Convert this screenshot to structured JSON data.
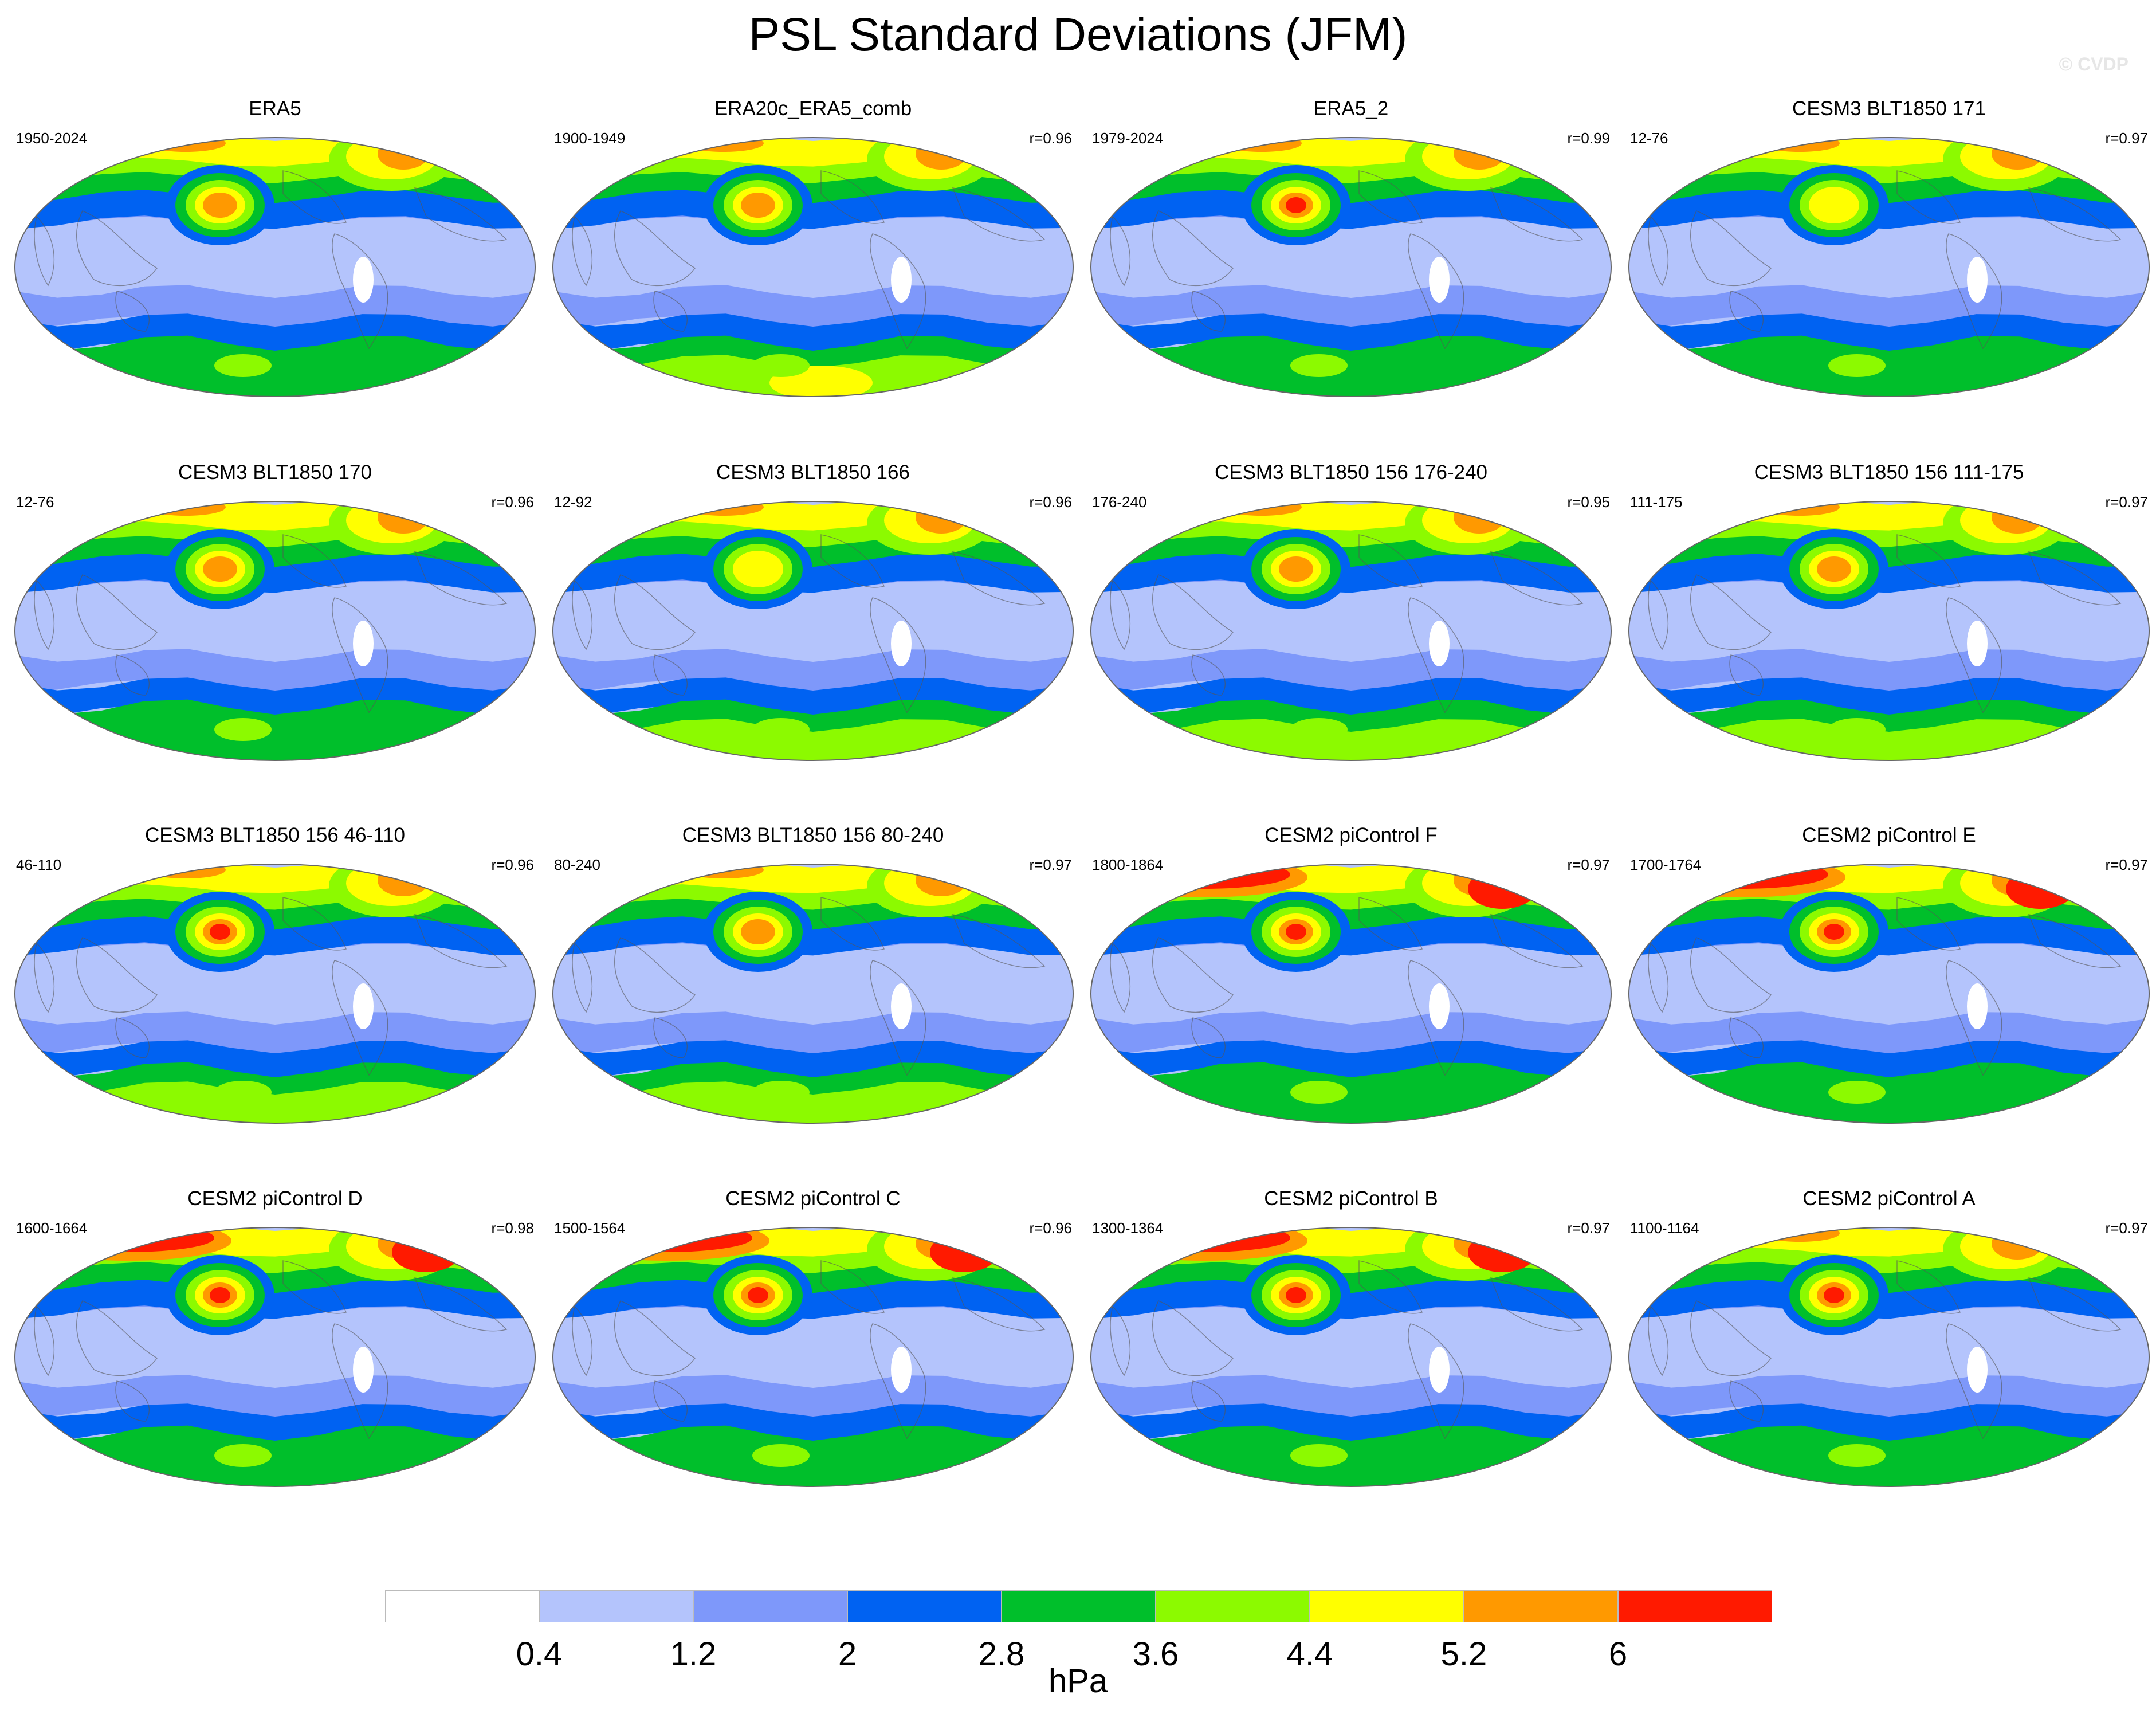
{
  "title": "PSL Standard Deviations (JFM)",
  "credit": "© CVDP",
  "units": "hPa",
  "levels": [
    "0.4",
    "1.2",
    "2",
    "2.8",
    "3.6",
    "4.4",
    "5.2",
    "6"
  ],
  "colors": [
    "#ffffff",
    "#b4c4fc",
    "#7e98fa",
    "#0062f2",
    "#00bf2b",
    "#8cfa00",
    "#ffff00",
    "#ff9900",
    "#ff1a00"
  ],
  "panels": [
    {
      "title": "ERA5",
      "years": "1950-2024",
      "r": "",
      "nh": 0.55,
      "ak": 0.78,
      "sh": 0.55
    },
    {
      "title": "ERA20c_ERA5_comb",
      "years": "1900-1949",
      "r": "r=0.96",
      "nh": 0.5,
      "ak": 0.7,
      "sh": 0.85
    },
    {
      "title": "ERA5_2",
      "years": "1979-2024",
      "r": "r=0.99",
      "nh": 0.55,
      "ak": 0.88,
      "sh": 0.55
    },
    {
      "title": "CESM3 BLT1850 171",
      "years": "12-76",
      "r": "r=0.97",
      "nh": 0.5,
      "ak": 0.55,
      "sh": 0.4
    },
    {
      "title": "CESM3 BLT1850 170",
      "years": "12-76",
      "r": "r=0.96",
      "nh": 0.5,
      "ak": 0.65,
      "sh": 0.55
    },
    {
      "title": "CESM3 BLT1850 166",
      "years": "12-92",
      "r": "r=0.96",
      "nh": 0.5,
      "ak": 0.58,
      "sh": 0.75
    },
    {
      "title": "CESM3 BLT1850 156 176-240",
      "years": "176-240",
      "r": "r=0.95",
      "nh": 0.55,
      "ak": 0.65,
      "sh": 0.75
    },
    {
      "title": "CESM3 BLT1850 156 111-175",
      "years": "111-175",
      "r": "r=0.97",
      "nh": 0.65,
      "ak": 0.78,
      "sh": 0.75
    },
    {
      "title": "CESM3 BLT1850 156 46-110",
      "years": "46-110",
      "r": "r=0.96",
      "nh": 0.55,
      "ak": 0.88,
      "sh": 0.75
    },
    {
      "title": "CESM3 BLT1850 156 80-240",
      "years": "80-240",
      "r": "r=0.97",
      "nh": 0.55,
      "ak": 0.82,
      "sh": 0.75
    },
    {
      "title": "CESM2 piControl F",
      "years": "1800-1864",
      "r": "r=0.97",
      "nh": 0.9,
      "ak": 1.0,
      "sh": 0.6
    },
    {
      "title": "CESM2 piControl E",
      "years": "1700-1764",
      "r": "r=0.97",
      "nh": 0.9,
      "ak": 1.0,
      "sh": 0.6
    },
    {
      "title": "CESM2 piControl D",
      "years": "1600-1664",
      "r": "r=0.98",
      "nh": 0.85,
      "ak": 0.92,
      "sh": 0.5
    },
    {
      "title": "CESM2 piControl C",
      "years": "1500-1564",
      "r": "r=0.96",
      "nh": 0.85,
      "ak": 0.95,
      "sh": 0.5
    },
    {
      "title": "CESM2 piControl B",
      "years": "1300-1364",
      "r": "r=0.97",
      "nh": 0.85,
      "ak": 0.92,
      "sh": 0.5
    },
    {
      "title": "CESM2 piControl A",
      "years": "1100-1164",
      "r": "r=0.97",
      "nh": 0.8,
      "ak": 0.95,
      "sh": 0.55
    }
  ]
}
